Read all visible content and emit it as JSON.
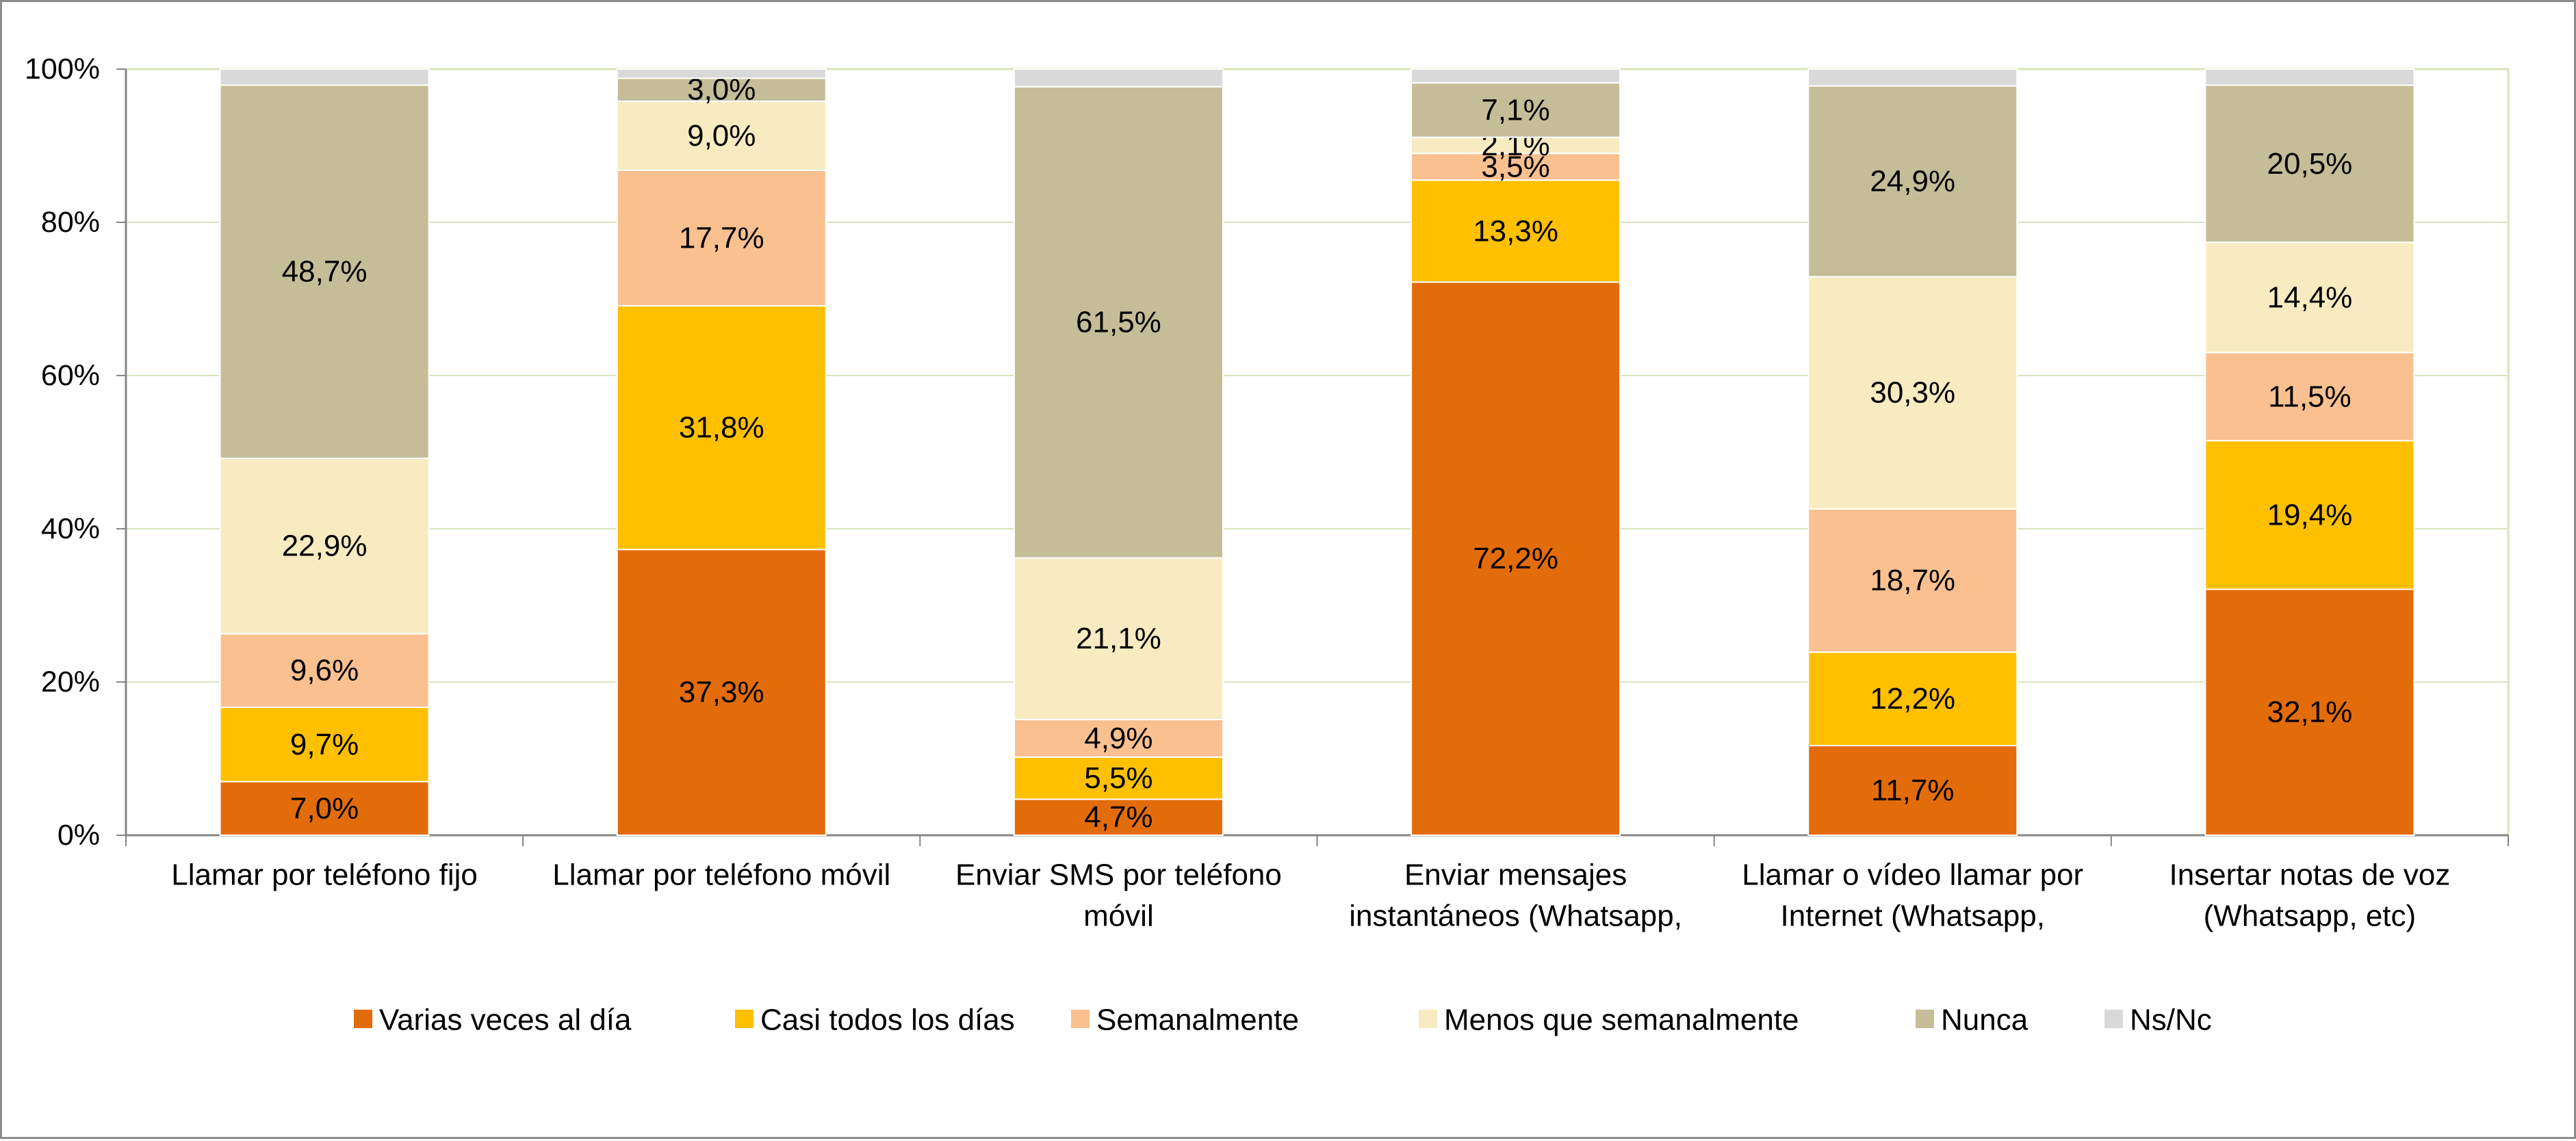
{
  "chart_data": {
    "type": "bar",
    "stacked": true,
    "categories": [
      [
        "Llamar por teléfono fijo"
      ],
      [
        "Llamar por teléfono móvil"
      ],
      [
        "Enviar SMS por teléfono",
        "móvil"
      ],
      [
        "Enviar mensajes",
        "instantáneos (Whatsapp,"
      ],
      [
        "Llamar o vídeo llamar por",
        "Internet (Whatsapp,"
      ],
      [
        "Insertar notas de voz",
        "(Whatsapp, etc)"
      ]
    ],
    "series": [
      {
        "name": "Varias veces al día",
        "color": "#E36C0A",
        "values": [
          7.0,
          37.3,
          4.7,
          72.2,
          11.7,
          32.1
        ],
        "labels": [
          "7,0%",
          "37,3%",
          "4,7%",
          "72,2%",
          "11,7%",
          "32,1%"
        ]
      },
      {
        "name": "Casi todos los días",
        "color": "#FFC000",
        "values": [
          9.7,
          31.8,
          5.5,
          13.3,
          12.2,
          19.4
        ],
        "labels": [
          "9,7%",
          "31,8%",
          "5,5%",
          "13,3%",
          "12,2%",
          "19,4%"
        ]
      },
      {
        "name": "Semanalmente",
        "color": "#FAC090",
        "values": [
          9.6,
          17.7,
          4.9,
          3.5,
          18.7,
          11.5
        ],
        "labels": [
          "9,6%",
          "17,7%",
          "4,9%",
          "3,5%",
          "18,7%",
          "11,5%"
        ]
      },
      {
        "name": "Menos que semanalmente",
        "color": "#F8EBC1",
        "values": [
          22.9,
          9.0,
          21.1,
          2.1,
          30.3,
          14.4
        ],
        "labels": [
          "22,9%",
          "9,0%",
          "21,1%",
          "2,1%",
          "30,3%",
          "14,4%"
        ]
      },
      {
        "name": "Nunca",
        "color": "#C4BD97",
        "values": [
          48.7,
          3.0,
          61.5,
          7.1,
          24.9,
          20.5
        ],
        "labels": [
          "48,7%",
          "3,0%",
          "61,5%",
          "7,1%",
          "24,9%",
          "20,5%"
        ]
      },
      {
        "name": "Ns/Nc",
        "color": "#D9D9D9",
        "values": [
          2.1,
          1.2,
          2.3,
          1.8,
          2.2,
          2.1
        ],
        "labels": [
          "",
          "",
          "",
          "",
          "",
          ""
        ]
      }
    ],
    "yticks": [
      "0%",
      "20%",
      "40%",
      "60%",
      "80%",
      "100%"
    ],
    "ylim": [
      0,
      100
    ],
    "grid": true,
    "legend": "bottom",
    "plot_bg": "#FFFFFF",
    "grid_color": "#D7E4BD",
    "title": "",
    "xlabel": "",
    "ylabel": ""
  }
}
